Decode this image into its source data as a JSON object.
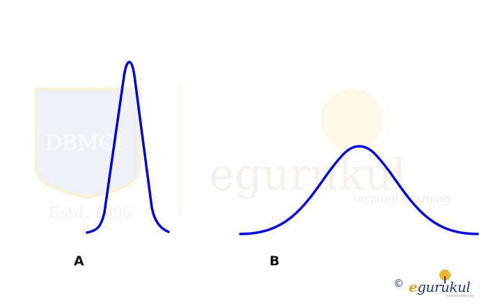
{
  "curves": {
    "a": {
      "label": "A",
      "color": "#0000dd"
    },
    "b": {
      "label": "B",
      "color": "#0000dd"
    }
  },
  "watermark": {
    "seal_text": "DBMCI",
    "established": "Estd. 1996",
    "brand_word": "egurukul",
    "tagline": "Inspired Learning"
  },
  "footer": {
    "copyright_symbol": "©",
    "brand_e": "e",
    "brand_rest": "gurukul",
    "tagline": "Inspired Learning"
  }
}
